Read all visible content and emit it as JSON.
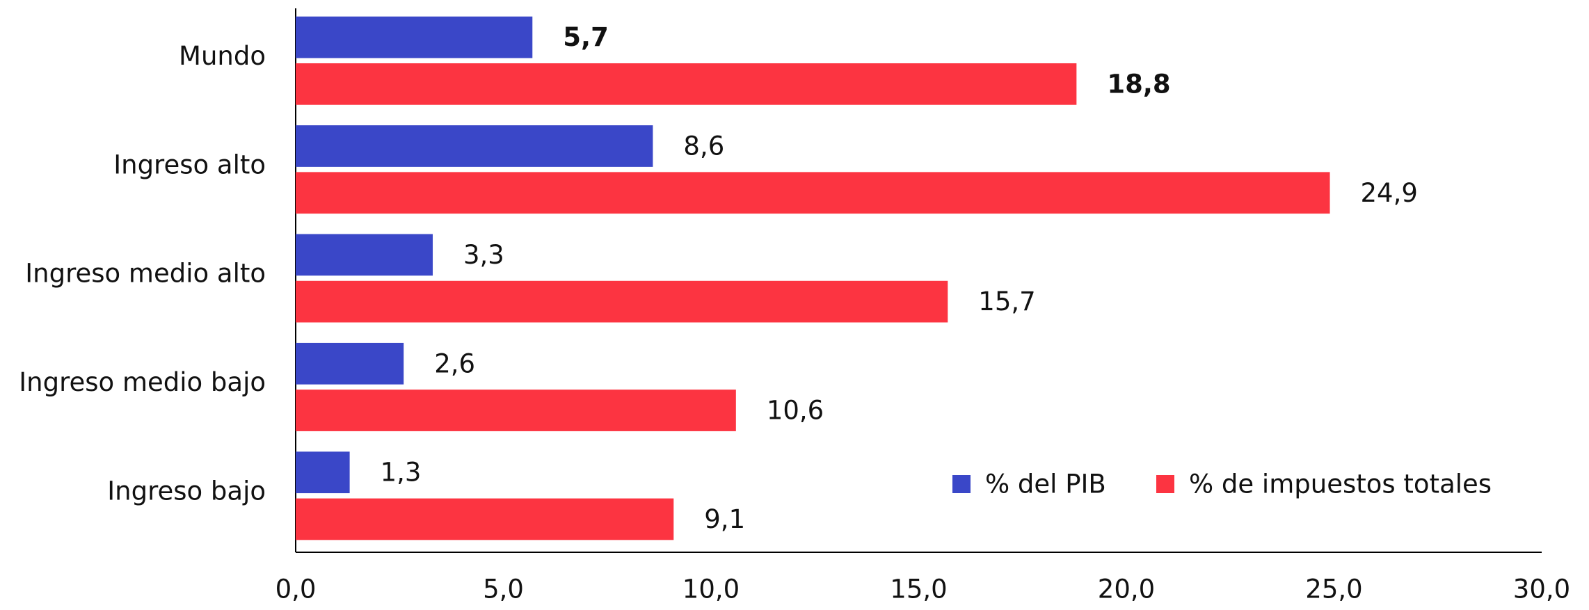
{
  "chart_data": {
    "type": "hbar",
    "categories": [
      "Mundo",
      "Ingreso alto",
      "Ingreso medio alto",
      "Ingreso medio bajo",
      "Ingreso bajo"
    ],
    "series": [
      {
        "name": "% del PIB",
        "color": "#3a47c8",
        "values": [
          5.7,
          8.6,
          3.3,
          2.6,
          1.3
        ],
        "value_labels": [
          "5,7",
          "8,6",
          "3,3",
          "2,6",
          "1,3"
        ]
      },
      {
        "name": "% de impuestos totales",
        "color": "#fc3441",
        "values": [
          18.8,
          24.9,
          15.7,
          10.6,
          9.1
        ],
        "value_labels": [
          "18,8",
          "24,9",
          "15,7",
          "10,6",
          "9,1"
        ]
      }
    ],
    "xlim": [
      0,
      30
    ],
    "xticks": [
      {
        "value": 0,
        "label": "0,0"
      },
      {
        "value": 5,
        "label": "5,0"
      },
      {
        "value": 10,
        "label": "10,0"
      },
      {
        "value": 15,
        "label": "15,0"
      },
      {
        "value": 20,
        "label": "20,0"
      },
      {
        "value": 25,
        "label": "25,0"
      },
      {
        "value": 30,
        "label": "30,0"
      }
    ],
    "grid": false,
    "legend": "lower right"
  }
}
